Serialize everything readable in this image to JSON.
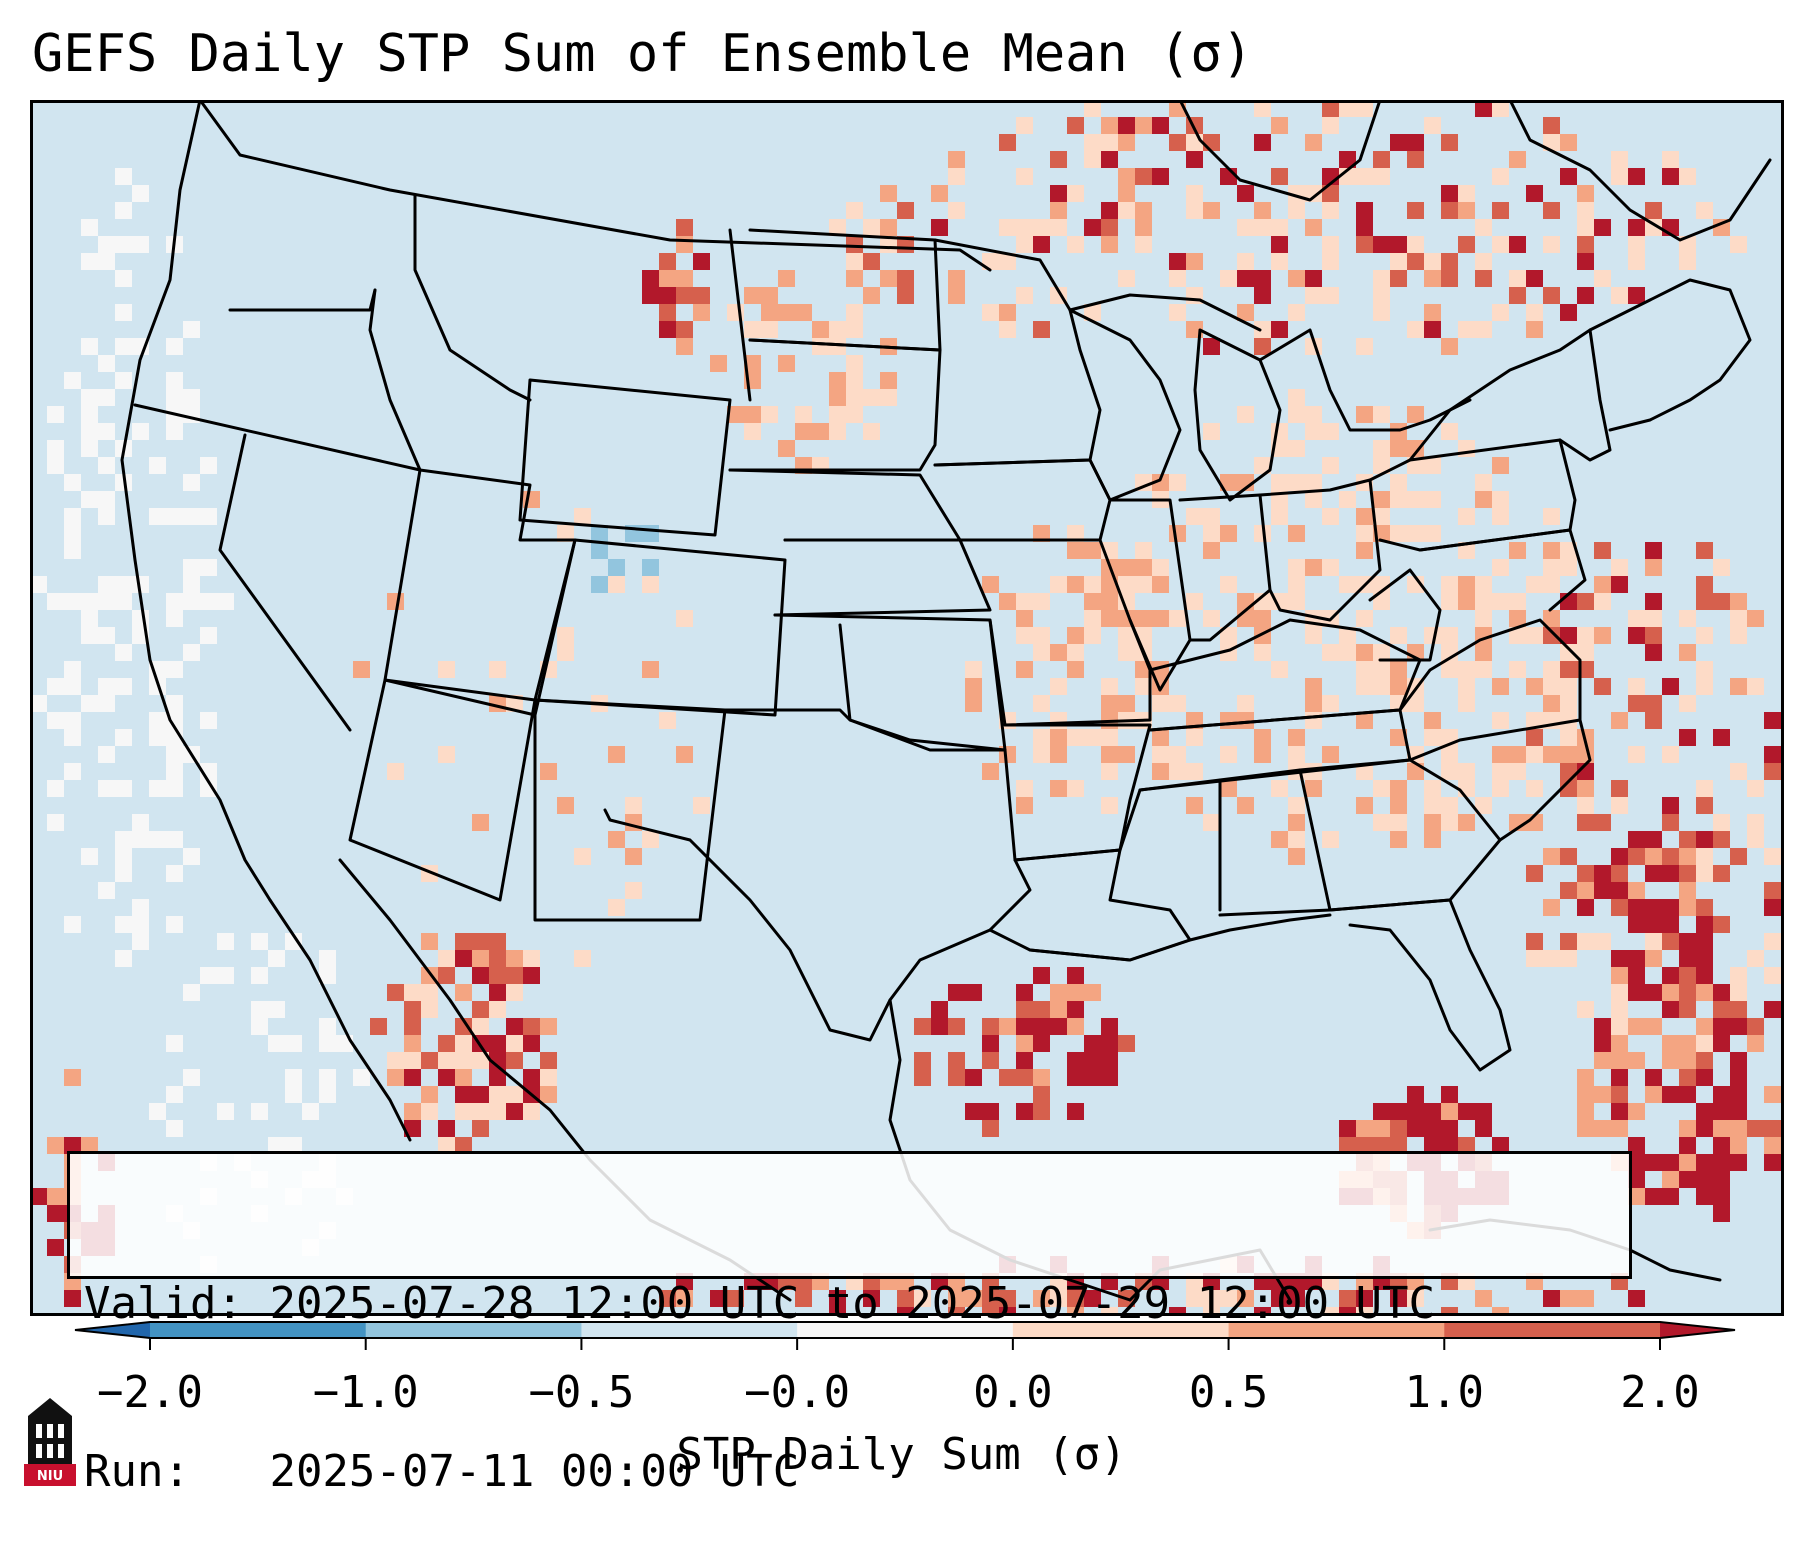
{
  "title": "GEFS Daily STP Sum of Ensemble Mean (σ)",
  "info": {
    "valid_label": "Valid:",
    "valid_value": "2025-07-28 12:00 UTC to 2025-07-29 12:00 UTC",
    "run_label": "Run:",
    "run_value": "2025-07-11 00:00 UTC"
  },
  "colorbar": {
    "label": "STP Daily Sum (σ)",
    "ticks": [
      "−2.0",
      "−1.0",
      "−0.5",
      "−0.0",
      "0.0",
      "0.5",
      "1.0",
      "2.0"
    ],
    "segments": [
      {
        "from": "-2.0",
        "to": "-1.0",
        "color": "#4393c3"
      },
      {
        "from": "-1.0",
        "to": "-0.5",
        "color": "#92c5de"
      },
      {
        "from": "-0.5",
        "to": "-0.0",
        "color": "#d1e5f0"
      },
      {
        "from": "-0.0",
        "to": "0.0",
        "color": "#f7f7f7"
      },
      {
        "from": "0.0",
        "to": "0.5",
        "color": "#fddbc7"
      },
      {
        "from": "0.5",
        "to": "1.0",
        "color": "#f4a582"
      },
      {
        "from": "1.0",
        "to": "2.0",
        "color": "#d6604d"
      }
    ],
    "under_color": "#2166ac",
    "over_color": "#b2182b"
  },
  "colors": {
    "background_field": "#d1e5f0",
    "neutral": "#f7f7f7",
    "light_red": "#fddbc7",
    "mid_red": "#f4a582",
    "red": "#d6604d",
    "dark_red": "#b2182b",
    "light_blue": "#92c5de",
    "mid_blue": "#4393c3"
  },
  "logo": {
    "text": "NIU",
    "color": "#c8102e"
  }
}
